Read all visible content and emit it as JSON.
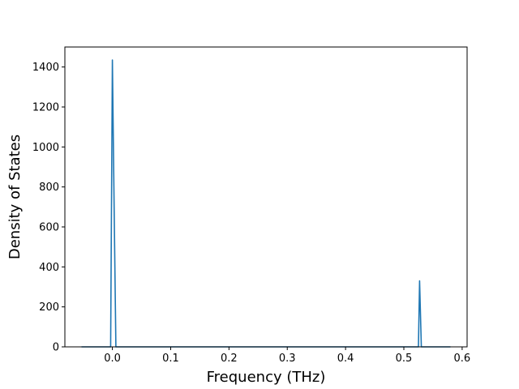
{
  "chart_data": {
    "type": "line",
    "title": "",
    "xlabel": "Frequency (THz)",
    "ylabel": "Density of States",
    "xlim": [
      -0.0815,
      0.6085
    ],
    "ylim": [
      0,
      1500
    ],
    "xticks": [
      0.0,
      0.1,
      0.2,
      0.3,
      0.4,
      0.5,
      0.6
    ],
    "xtick_labels": [
      "0.0",
      "0.1",
      "0.2",
      "0.3",
      "0.4",
      "0.5",
      "0.6"
    ],
    "yticks": [
      0,
      200,
      400,
      600,
      800,
      1000,
      1200,
      1400
    ],
    "ytick_labels": [
      "0",
      "200",
      "400",
      "600",
      "800",
      "1000",
      "1200",
      "1400"
    ],
    "grid": false,
    "color": "#1f77b4",
    "series": [
      {
        "x": [
          -0.053,
          -0.003,
          0.0,
          0.003,
          0.006,
          0.008,
          0.523,
          0.525,
          0.527,
          0.53,
          0.58
        ],
        "y": [
          0,
          0,
          1435,
          700,
          0,
          0,
          0,
          0,
          330,
          0,
          0
        ]
      }
    ]
  }
}
